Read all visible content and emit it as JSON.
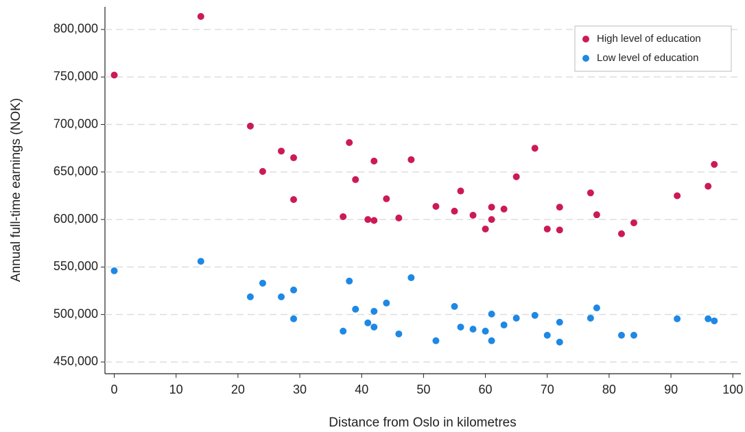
{
  "chart_data": {
    "type": "scatter",
    "xlabel": "Distance from Oslo in kilometres",
    "ylabel": "Annual full-time earnings (NOK)",
    "xlim": [
      -1.5,
      101.3
    ],
    "ylim": [
      437700,
      823800
    ],
    "xticks": [
      0,
      10,
      20,
      30,
      40,
      50,
      60,
      70,
      80,
      90,
      100
    ],
    "yticks": [
      {
        "value": 450000,
        "label": "450,000"
      },
      {
        "value": 500000,
        "label": "500,000"
      },
      {
        "value": 550000,
        "label": "550,000"
      },
      {
        "value": 600000,
        "label": "600,000"
      },
      {
        "value": 650000,
        "label": "650,000"
      },
      {
        "value": 700000,
        "label": "700,000"
      },
      {
        "value": 750000,
        "label": "750,000"
      },
      {
        "value": 800000,
        "label": "800,000"
      }
    ],
    "grid": true,
    "legend": "upper right",
    "series": [
      {
        "name": "High level of education",
        "color": "#cc1a54",
        "x": [
          0,
          14,
          22,
          24,
          27,
          29,
          29,
          37,
          38,
          39,
          41,
          42,
          42,
          44,
          46,
          48,
          52,
          55,
          56,
          58,
          60,
          61,
          61,
          63,
          65,
          68,
          70,
          72,
          72,
          77,
          78,
          82,
          84,
          91,
          96,
          97
        ],
        "values": [
          752000,
          813700,
          698300,
          650600,
          672000,
          665000,
          621000,
          603000,
          681000,
          642000,
          600000,
          599000,
          661500,
          621800,
          601600,
          663000,
          613800,
          608800,
          630000,
          604500,
          590000,
          613000,
          600000,
          611000,
          645000,
          675000,
          590000,
          613000,
          589000,
          628000,
          605000,
          585000,
          596500,
          625000,
          635000,
          658000
        ]
      },
      {
        "name": "Low level of education",
        "color": "#1e88e5",
        "x": [
          0,
          14,
          22,
          24,
          27,
          29,
          29,
          37,
          38,
          39,
          41,
          42,
          42,
          44,
          46,
          48,
          52,
          55,
          56,
          58,
          60,
          61,
          61,
          63,
          65,
          68,
          70,
          72,
          72,
          77,
          78,
          82,
          84,
          91,
          96,
          97
        ],
        "values": [
          546000,
          556000,
          518600,
          533000,
          518600,
          525800,
          495500,
          482500,
          535200,
          505600,
          491200,
          503400,
          486800,
          512100,
          479600,
          538800,
          472400,
          508500,
          486800,
          484600,
          482500,
          500500,
          472400,
          489000,
          496200,
          499100,
          478200,
          491900,
          471000,
          496200,
          507000,
          478200,
          478200,
          495500,
          495500,
          493300
        ]
      }
    ]
  }
}
